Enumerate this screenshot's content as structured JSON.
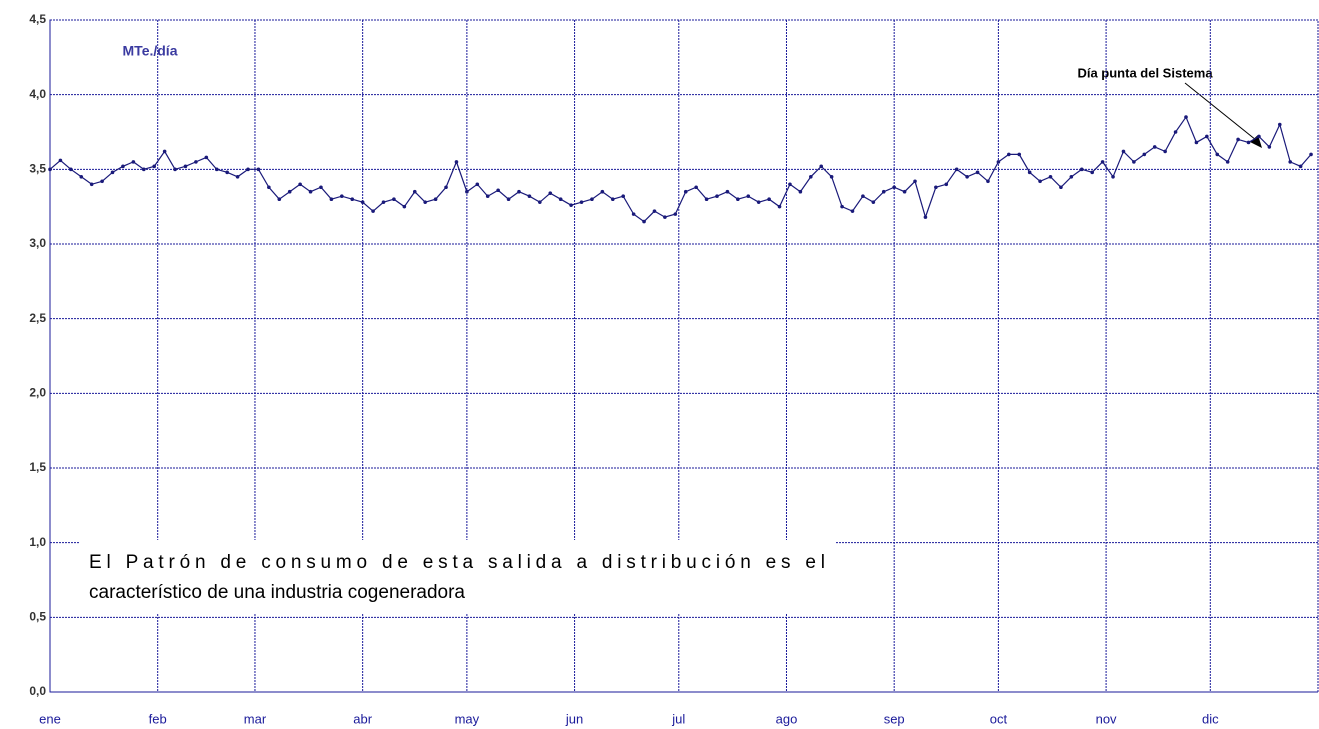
{
  "chart_data": {
    "type": "line",
    "unit_label": "MTe./día",
    "annotation": "Día punta del Sistema",
    "note_lines": [
      "El Patrón de consumo de esta salida a distribución es el",
      "característico de una industria cogeneradora"
    ],
    "x": [
      0,
      3,
      6,
      9,
      12,
      15,
      18,
      21,
      24,
      27,
      30,
      33,
      36,
      39,
      42,
      45,
      48,
      51,
      54,
      57,
      60,
      63,
      66,
      69,
      72,
      75,
      78,
      81,
      84,
      87,
      90,
      93,
      96,
      99,
      102,
      105,
      108,
      111,
      114,
      117,
      120,
      123,
      126,
      129,
      132,
      135,
      138,
      141,
      144,
      147,
      150,
      153,
      156,
      159,
      162,
      165,
      168,
      171,
      174,
      177,
      180,
      183,
      186,
      189,
      192,
      195,
      198,
      201,
      204,
      207,
      210,
      213,
      216,
      219,
      222,
      225,
      228,
      231,
      234,
      237,
      240,
      243,
      246,
      249,
      252,
      255,
      258,
      261,
      264,
      267,
      270,
      273,
      276,
      279,
      282,
      285,
      288,
      291,
      294,
      297,
      300,
      303,
      306,
      309,
      312,
      315,
      318,
      321,
      324,
      327,
      330,
      333,
      336,
      339,
      342,
      345,
      348,
      351,
      354,
      357,
      360,
      363
    ],
    "series": [
      {
        "color": "#1a1a7a",
        "values": [
          3.5,
          3.56,
          3.5,
          3.45,
          3.4,
          3.42,
          3.48,
          3.52,
          3.55,
          3.5,
          3.52,
          3.62,
          3.5,
          3.52,
          3.55,
          3.58,
          3.5,
          3.48,
          3.45,
          3.5,
          3.5,
          3.38,
          3.3,
          3.35,
          3.4,
          3.35,
          3.38,
          3.3,
          3.32,
          3.3,
          3.28,
          3.22,
          3.28,
          3.3,
          3.25,
          3.35,
          3.28,
          3.3,
          3.38,
          3.55,
          3.35,
          3.4,
          3.32,
          3.36,
          3.3,
          3.35,
          3.32,
          3.28,
          3.34,
          3.3,
          3.26,
          3.28,
          3.3,
          3.35,
          3.3,
          3.32,
          3.2,
          3.15,
          3.22,
          3.18,
          3.2,
          3.35,
          3.38,
          3.3,
          3.32,
          3.35,
          3.3,
          3.32,
          3.28,
          3.3,
          3.25,
          3.4,
          3.35,
          3.45,
          3.52,
          3.45,
          3.25,
          3.22,
          3.32,
          3.28,
          3.35,
          3.38,
          3.35,
          3.42,
          3.18,
          3.38,
          3.4,
          3.5,
          3.45,
          3.48,
          3.42,
          3.55,
          3.6,
          3.6,
          3.48,
          3.42,
          3.45,
          3.38,
          3.45,
          3.5,
          3.48,
          3.55,
          3.45,
          3.62,
          3.55,
          3.6,
          3.65,
          3.62,
          3.75,
          3.85,
          3.68,
          3.72,
          3.6,
          3.55,
          3.7,
          3.68,
          3.72,
          3.65,
          3.8,
          3.55,
          3.52,
          3.6
        ]
      }
    ],
    "xlim": [
      0,
      365
    ],
    "xticks": [
      {
        "value": 0,
        "label": "ene"
      },
      {
        "value": 31,
        "label": "feb"
      },
      {
        "value": 59,
        "label": "mar"
      },
      {
        "value": 90,
        "label": "abr"
      },
      {
        "value": 120,
        "label": "may"
      },
      {
        "value": 151,
        "label": "jun"
      },
      {
        "value": 181,
        "label": "jul"
      },
      {
        "value": 212,
        "label": "ago"
      },
      {
        "value": 243,
        "label": "sep"
      },
      {
        "value": 273,
        "label": "oct"
      },
      {
        "value": 304,
        "label": "nov"
      },
      {
        "value": 334,
        "label": "dic"
      }
    ],
    "ylim": [
      0,
      4.5
    ],
    "yticks": [
      {
        "value": 0,
        "label": "0,0"
      },
      {
        "value": 0.5,
        "label": "0,5"
      },
      {
        "value": 1,
        "label": "1,0"
      },
      {
        "value": 1.5,
        "label": "1,5"
      },
      {
        "value": 2,
        "label": "2,0"
      },
      {
        "value": 2.5,
        "label": "2,5"
      },
      {
        "value": 3,
        "label": "3,0"
      },
      {
        "value": 3.5,
        "label": "3,5"
      },
      {
        "value": 4,
        "label": "4,0"
      },
      {
        "value": 4.5,
        "label": "4,5"
      }
    ],
    "grid": true
  }
}
